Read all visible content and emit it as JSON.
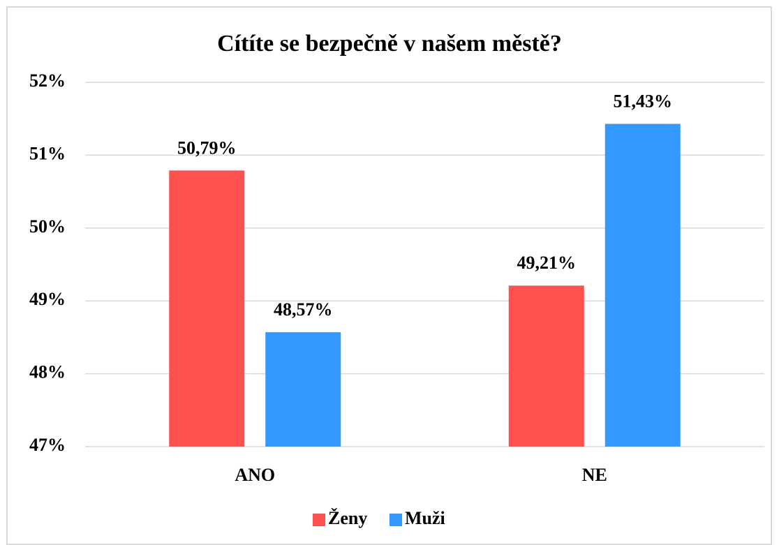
{
  "chart_data": {
    "type": "bar",
    "title": "Cítíte se bezpečně v našem městě?",
    "categories": [
      "ANO",
      "NE"
    ],
    "series": [
      {
        "name": "Ženy",
        "color": "#ff5050",
        "values": [
          50.79,
          49.21
        ],
        "value_labels": [
          "50,79%",
          "49,21%"
        ]
      },
      {
        "name": "Muži",
        "color": "#3399ff",
        "values": [
          48.57,
          51.43
        ],
        "value_labels": [
          "48,57%",
          "51,43%"
        ]
      }
    ],
    "ylim": [
      47,
      52
    ],
    "yticks": [
      {
        "value": 47,
        "label": "47%"
      },
      {
        "value": 48,
        "label": "48%"
      },
      {
        "value": 49,
        "label": "49%"
      },
      {
        "value": 50,
        "label": "50%"
      },
      {
        "value": 51,
        "label": "51%"
      },
      {
        "value": 52,
        "label": "52%"
      }
    ],
    "grid": true,
    "legend": "bottom"
  }
}
